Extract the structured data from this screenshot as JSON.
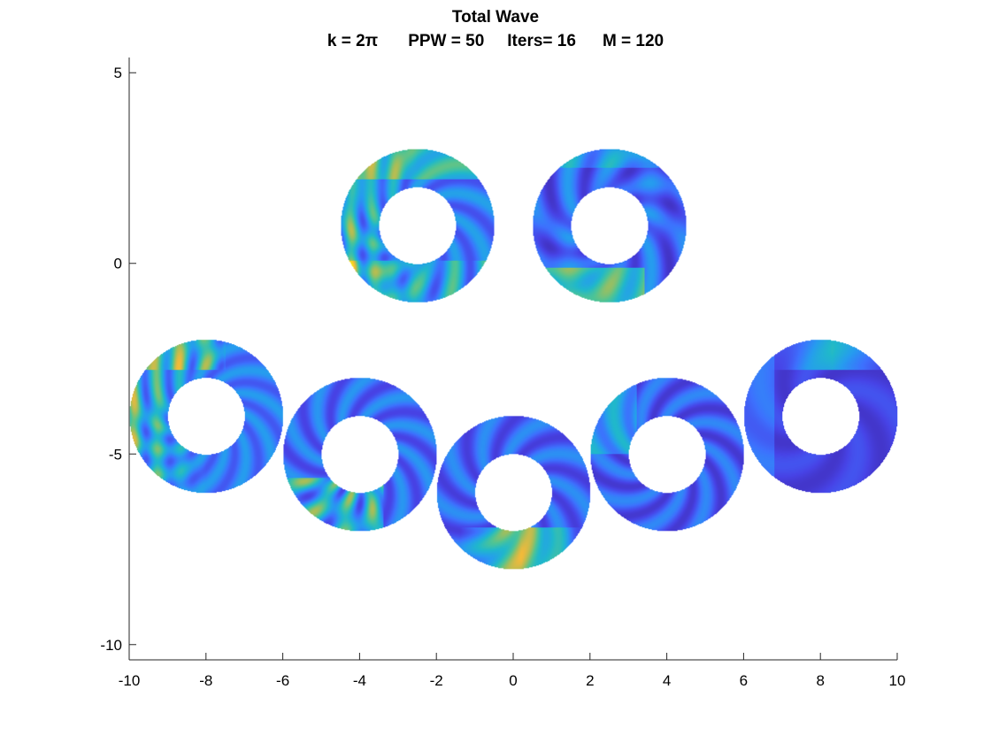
{
  "chart_data": {
    "type": "heatmap",
    "title": "Total Wave",
    "subtitle": {
      "k": "k = 2π",
      "ppw": "PPW = 50",
      "iters": "Iters= 16",
      "m": "M = 120"
    },
    "xlabel": "",
    "ylabel": "",
    "xlim": [
      -10,
      10
    ],
    "ylim": [
      -10.4,
      5.4
    ],
    "xticks": [
      -10,
      -8,
      -6,
      -4,
      -2,
      0,
      2,
      4,
      6,
      8,
      10
    ],
    "yticks": [
      -10,
      -5,
      0,
      5
    ],
    "grid": false,
    "colormap": "parula",
    "colormap_stops": [
      "#3e26a8",
      "#4743e6",
      "#3d71fe",
      "#269cef",
      "#20b8cb",
      "#4ec495",
      "#a5be5a",
      "#f0b93c",
      "#f9e317"
    ],
    "annuli": [
      {
        "cx": -2.5,
        "cy": 1,
        "r_inner": 1,
        "r_outer": 2,
        "field": "strong standing-wave stripes on the left half"
      },
      {
        "cx": 2.5,
        "cy": 1,
        "r_inner": 1,
        "r_outer": 2,
        "field": "weak scattering, bright patch at bottom"
      },
      {
        "cx": -8,
        "cy": -4,
        "r_inner": 1,
        "r_outer": 2,
        "field": "strong striped bright pattern on the left"
      },
      {
        "cx": -4,
        "cy": -5,
        "r_inner": 1,
        "r_outer": 2,
        "field": "moderate, bright at lower left"
      },
      {
        "cx": 0,
        "cy": -6,
        "r_inner": 1,
        "r_outer": 2,
        "field": "bright band at bottom"
      },
      {
        "cx": 4,
        "cy": -5,
        "r_inner": 1,
        "r_outer": 2,
        "field": "mostly dark with faint lobes"
      },
      {
        "cx": 8,
        "cy": -4,
        "r_inner": 1,
        "r_outer": 2,
        "field": "dark, light band at top"
      }
    ]
  }
}
